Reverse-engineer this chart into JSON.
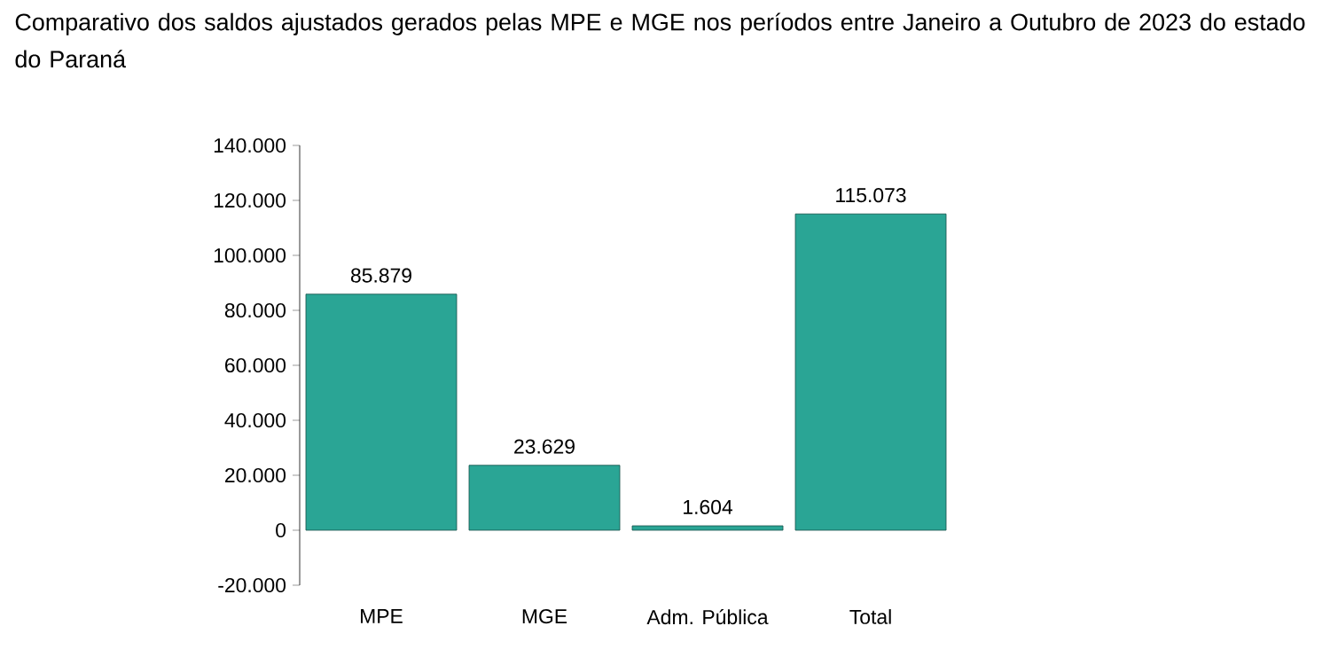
{
  "chart_data": {
    "type": "bar",
    "title": "Comparativo dos saldos ajustados gerados pelas MPE e MGE nos períodos entre Janeiro a Outubro de 2023 do estado do Paraná",
    "categories": [
      "MPE",
      "MGE",
      "Adm. Pública",
      "Total"
    ],
    "values": [
      85879,
      23629,
      1604,
      115073
    ],
    "value_labels": [
      "85.879",
      "23.629",
      "1.604",
      "115.073"
    ],
    "color": "#2aa595",
    "ylim": [
      -20000,
      140000
    ],
    "yticks": [
      {
        "value": -20000,
        "label": "-20.000"
      },
      0,
      {
        "value": 20000,
        "label": "20.000"
      },
      {
        "value": 40000,
        "label": "40.000"
      },
      {
        "value": 60000,
        "label": "60.000"
      },
      {
        "value": 80000,
        "label": "80.000"
      },
      {
        "value": 100000,
        "label": "100.000"
      },
      {
        "value": 120000,
        "label": "120.000"
      },
      {
        "value": 140000,
        "label": "140.000"
      }
    ]
  }
}
